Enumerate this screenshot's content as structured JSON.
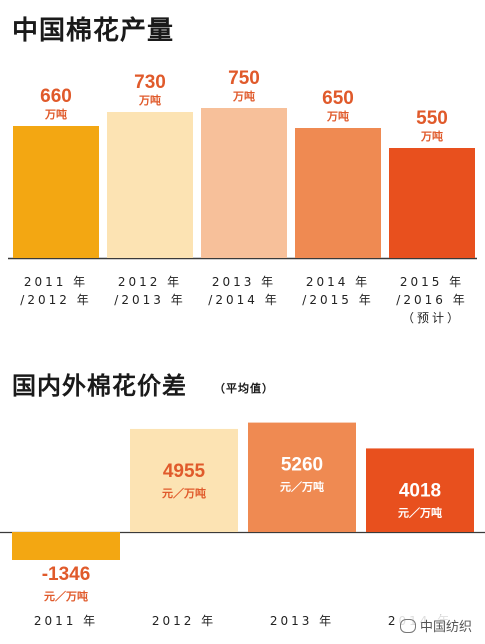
{
  "chart_data": [
    {
      "type": "bar",
      "title": "中国棉花产量",
      "categories": [
        "2011 年\n/2012 年",
        "2012 年\n/2013 年",
        "2013 年\n/2014 年",
        "2014 年\n/2015 年",
        "2015 年\n/2016 年\n（预计）"
      ],
      "values": [
        660,
        730,
        750,
        650,
        550
      ],
      "value_labels": [
        "660",
        "730",
        "750",
        "650",
        "550"
      ],
      "unit": "万吨",
      "colors": [
        "#f3a712",
        "#fce3b3",
        "#f7c09a",
        "#ef8a52",
        "#e8501e"
      ],
      "label_color": "#e05a2b",
      "ylim": [
        0,
        800
      ]
    },
    {
      "type": "bar",
      "title": "国内外棉花价差",
      "subtitle": "（平均值）",
      "categories": [
        "2011 年",
        "2012 年",
        "2013 年",
        "2014 年"
      ],
      "values": [
        -1346,
        4955,
        5260,
        4018
      ],
      "value_labels": [
        "-1346",
        "4955",
        "5260",
        "4018"
      ],
      "unit": "元／万吨",
      "colors": [
        "#f3a712",
        "#fce3b3",
        "#ef8a52",
        "#e8501e"
      ],
      "ylim": [
        -1500,
        5500
      ]
    }
  ],
  "watermark": "中国纺织"
}
